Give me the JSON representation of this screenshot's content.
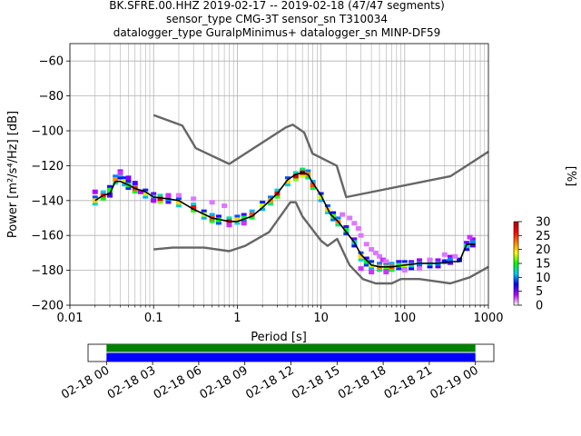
{
  "title": {
    "line1": "BK.SFRE.00.HHZ   2019-02-17 -- 2019-02-18  (47/47 segments)",
    "line2": "sensor_type CMG-3T sensor_sn T310034",
    "line3": "datalogger_type GuralpMinimus+ datalogger_sn MINP-DF59"
  },
  "chart_data": [
    {
      "type": "heatmap",
      "xlabel": "Period [s]",
      "ylabel": "Power [m²/s⁴/Hz] [dB]",
      "x_scale": "log",
      "xlim": [
        0.01,
        1000
      ],
      "ylim": [
        -200,
        -50
      ],
      "x_ticks": [
        0.01,
        0.1,
        1,
        10,
        100,
        1000
      ],
      "x_tick_labels": [
        "0.01",
        "0.1",
        "1",
        "10",
        "100",
        "1000"
      ],
      "y_ticks": [
        -200,
        -180,
        -160,
        -140,
        -120,
        -100,
        -80,
        -60
      ],
      "y_tick_labels": [
        "−200",
        "−180",
        "−160",
        "−140",
        "−120",
        "−100",
        "−80",
        "−60"
      ],
      "grid": true,
      "colorbar": {
        "label": "[%]",
        "range": [
          0,
          30
        ],
        "ticks": [
          0,
          5,
          10,
          15,
          20,
          25,
          30
        ],
        "tick_labels": [
          "0",
          "5",
          "10",
          "15",
          "20",
          "25",
          "30"
        ],
        "colors": [
          "#ffffff",
          "#bf00ff",
          "#0000ff",
          "#00c8ff",
          "#00ff00",
          "#ffff00",
          "#ff8000",
          "#ff0000",
          "#b40000"
        ]
      },
      "series": [
        {
          "style": "model-line",
          "color": "#666666",
          "points": [
            [
              0.1,
              -91
            ],
            [
              0.22,
              -97
            ],
            [
              0.32,
              -110
            ],
            [
              0.8,
              -119
            ],
            [
              3.8,
              -98
            ],
            [
              4.6,
              -96.5
            ],
            [
              6.3,
              -101
            ],
            [
              7.9,
              -113
            ],
            [
              15.4,
              -120
            ],
            [
              20,
              -138
            ],
            [
              354,
              -126
            ],
            [
              1000,
              -112
            ]
          ]
        },
        {
          "style": "model-line",
          "color": "#666666",
          "points": [
            [
              0.1,
              -168
            ],
            [
              0.17,
              -167
            ],
            [
              0.4,
              -167
            ],
            [
              0.8,
              -169
            ],
            [
              1.24,
              -166
            ],
            [
              2.4,
              -158
            ],
            [
              4.3,
              -141
            ],
            [
              5,
              -141
            ],
            [
              6,
              -149
            ],
            [
              10,
              -163
            ],
            [
              12,
              -166
            ],
            [
              15.6,
              -162
            ],
            [
              21.9,
              -177
            ],
            [
              31.6,
              -185
            ],
            [
              45,
              -187.5
            ],
            [
              70,
              -187.5
            ],
            [
              90,
              -185
            ],
            [
              150,
              -185
            ],
            [
              250,
              -186.5
            ],
            [
              350,
              -187.5
            ],
            [
              600,
              -184
            ],
            [
              1000,
              -178
            ]
          ]
        },
        {
          "style": "mode-line",
          "color": "#000000",
          "points": [
            [
              0.02,
              -140
            ],
            [
              0.025,
              -137
            ],
            [
              0.03,
              -136
            ],
            [
              0.035,
              -129
            ],
            [
              0.04,
              -129
            ],
            [
              0.05,
              -131
            ],
            [
              0.06,
              -133
            ],
            [
              0.08,
              -135
            ],
            [
              0.1,
              -138
            ],
            [
              0.15,
              -139
            ],
            [
              0.2,
              -140
            ],
            [
              0.3,
              -145
            ],
            [
              0.5,
              -150
            ],
            [
              0.8,
              -152
            ],
            [
              1,
              -152
            ],
            [
              1.5,
              -149
            ],
            [
              2,
              -144
            ],
            [
              3,
              -136
            ],
            [
              4,
              -128
            ],
            [
              5,
              -125
            ],
            [
              6,
              -124
            ],
            [
              7,
              -125
            ],
            [
              8,
              -130
            ],
            [
              10,
              -137
            ],
            [
              13,
              -148
            ],
            [
              16,
              -152
            ],
            [
              20,
              -158
            ],
            [
              25,
              -164
            ],
            [
              30,
              -171
            ],
            [
              40,
              -177
            ],
            [
              50,
              -178
            ],
            [
              70,
              -178
            ],
            [
              100,
              -177
            ],
            [
              150,
              -176
            ],
            [
              250,
              -176
            ],
            [
              350,
              -175
            ],
            [
              450,
              -175
            ],
            [
              550,
              -165
            ],
            [
              700,
              -165
            ]
          ]
        }
      ],
      "density": {
        "cells": [
          [
            0.02,
            -140,
            20
          ],
          [
            0.025,
            -137,
            25
          ],
          [
            0.03,
            -134,
            15
          ],
          [
            0.035,
            -128,
            22
          ],
          [
            0.04,
            -125,
            12
          ],
          [
            0.045,
            -129,
            18
          ],
          [
            0.05,
            -131,
            14
          ],
          [
            0.06,
            -133,
            25
          ],
          [
            0.08,
            -136,
            18
          ],
          [
            0.1,
            -138,
            12
          ],
          [
            0.12,
            -139,
            28
          ],
          [
            0.15,
            -139,
            10
          ],
          [
            0.2,
            -141,
            20
          ],
          [
            0.3,
            -144,
            26
          ],
          [
            0.4,
            -148,
            18
          ],
          [
            0.5,
            -150,
            24
          ],
          [
            0.6,
            -151,
            15
          ],
          [
            0.8,
            -152,
            28
          ],
          [
            1,
            -151,
            20
          ],
          [
            1.2,
            -150,
            14
          ],
          [
            1.5,
            -148,
            24
          ],
          [
            2,
            -143,
            18
          ],
          [
            2.5,
            -140,
            22
          ],
          [
            3,
            -136,
            26
          ],
          [
            4,
            -129,
            20
          ],
          [
            5,
            -126,
            28
          ],
          [
            6,
            -124,
            30
          ],
          [
            7,
            -125,
            22
          ],
          [
            8,
            -131,
            24
          ],
          [
            10,
            -138,
            18
          ],
          [
            12,
            -145,
            20
          ],
          [
            14,
            -149,
            16
          ],
          [
            16,
            -152,
            22
          ],
          [
            20,
            -157,
            14
          ],
          [
            25,
            -164,
            12
          ],
          [
            30,
            -172,
            20
          ],
          [
            35,
            -175,
            14
          ],
          [
            40,
            -177,
            18
          ],
          [
            50,
            -178,
            22
          ],
          [
            60,
            -178,
            16
          ],
          [
            70,
            -178,
            24
          ],
          [
            85,
            -177,
            14
          ],
          [
            100,
            -177,
            18
          ],
          [
            120,
            -177,
            12
          ],
          [
            150,
            -176,
            10
          ],
          [
            200,
            -176,
            12
          ],
          [
            250,
            -176,
            10
          ],
          [
            300,
            -175,
            8
          ],
          [
            350,
            -174,
            10
          ],
          [
            450,
            -174,
            8
          ],
          [
            550,
            -166,
            12
          ],
          [
            650,
            -164,
            10
          ],
          [
            0.02,
            -135,
            4
          ],
          [
            0.03,
            -137,
            6
          ],
          [
            0.04,
            -124,
            3
          ],
          [
            0.05,
            -127,
            5
          ],
          [
            0.06,
            -130,
            6
          ],
          [
            0.07,
            -135,
            4
          ],
          [
            0.1,
            -140,
            4
          ],
          [
            0.15,
            -137,
            3
          ],
          [
            0.2,
            -137,
            2
          ],
          [
            0.3,
            -139,
            2
          ],
          [
            0.5,
            -141,
            2
          ],
          [
            0.7,
            -143,
            2
          ],
          [
            0.8,
            -154,
            3
          ],
          [
            1.2,
            -153,
            3
          ],
          [
            18,
            -148,
            2
          ],
          [
            22,
            -150,
            2
          ],
          [
            25,
            -153,
            2
          ],
          [
            28,
            -156,
            2
          ],
          [
            30,
            -160,
            2
          ],
          [
            35,
            -165,
            2
          ],
          [
            40,
            -168,
            2
          ],
          [
            45,
            -170,
            2
          ],
          [
            50,
            -172,
            2
          ],
          [
            55,
            -174,
            3
          ],
          [
            60,
            -175,
            2
          ],
          [
            30,
            -179,
            3
          ],
          [
            40,
            -181,
            3
          ],
          [
            60,
            -181,
            3
          ],
          [
            100,
            -180,
            2
          ],
          [
            150,
            -179,
            2
          ],
          [
            200,
            -174,
            2
          ],
          [
            300,
            -171,
            2
          ],
          [
            400,
            -172,
            2
          ],
          [
            600,
            -161,
            3
          ]
        ]
      }
    },
    {
      "type": "timeline",
      "x_tick_labels": [
        "02-18 00",
        "02-18 03",
        "02-18 06",
        "02-18 09",
        "02-18 12",
        "02-18 15",
        "02-18 18",
        "02-18 21",
        "02-19 00"
      ],
      "xlim_hours": [
        -1.2,
        25.2
      ],
      "bars": [
        {
          "start_hour": 0,
          "end_hour": 24,
          "color": "#008000"
        },
        {
          "start_hour": 0,
          "end_hour": 24,
          "color": "#0000ff"
        }
      ]
    }
  ]
}
